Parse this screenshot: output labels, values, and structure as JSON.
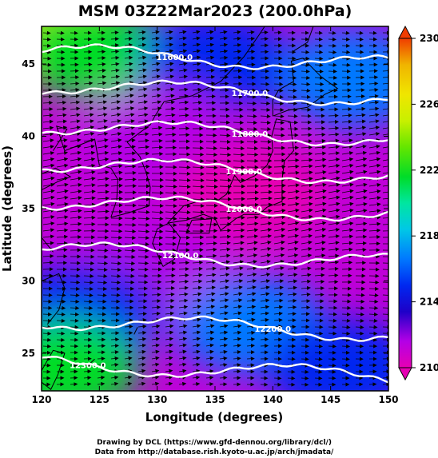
{
  "chart_data": {
    "type": "heatmap",
    "title": "MSM 03Z22Mar2023 (200.0hPa)",
    "xlabel": "Longitude (degrees)",
    "ylabel": "Latitude  (degrees)",
    "xlim": [
      120,
      150
    ],
    "ylim": [
      22.4,
      47.6
    ],
    "x_ticks": [
      "120",
      "125",
      "130",
      "135",
      "140",
      "145",
      "150"
    ],
    "y_ticks": [
      "25",
      "30",
      "35",
      "40",
      "45"
    ],
    "colorbar": {
      "min": 210,
      "max": 230,
      "ticks": [
        "210",
        "214",
        "218",
        "222",
        "226",
        "230"
      ],
      "colors": [
        "#e600b3",
        "#b400e6",
        "#1e00c8",
        "#0028f0",
        "#0078ff",
        "#00c8e6",
        "#00e6a0",
        "#00dc28",
        "#64e600",
        "#c8f000",
        "#f0e600",
        "#f0b400",
        "#f07800",
        "#f03c00"
      ]
    },
    "temperature_field": {
      "description": "shaded temperature (K)",
      "regions": [
        {
          "lon": 121,
          "lat": 47,
          "value": 226
        },
        {
          "lon": 124,
          "lat": 46,
          "value": 220
        },
        {
          "lon": 135,
          "lat": 45,
          "value": 214
        },
        {
          "lon": 147,
          "lat": 44,
          "value": 216
        },
        {
          "lon": 130,
          "lat": 40,
          "value": 211
        },
        {
          "lon": 138,
          "lat": 36,
          "value": 210
        },
        {
          "lon": 130,
          "lat": 31,
          "value": 211
        },
        {
          "lon": 124,
          "lat": 28,
          "value": 214
        },
        {
          "lon": 138,
          "lat": 27,
          "value": 216
        },
        {
          "lon": 122,
          "lat": 24,
          "value": 221
        },
        {
          "lon": 146,
          "lat": 24,
          "value": 215
        }
      ]
    },
    "contours": [
      {
        "value": "11600.0",
        "label_lon": 131.5,
        "label_lat": 45.5
      },
      {
        "value": "11700.0",
        "label_lon": 138.0,
        "label_lat": 43.0
      },
      {
        "value": "11800.0",
        "label_lon": 138.0,
        "label_lat": 40.2
      },
      {
        "value": "11900.0",
        "label_lon": 137.5,
        "label_lat": 37.6
      },
      {
        "value": "12000.0",
        "label_lon": 137.5,
        "label_lat": 35.0
      },
      {
        "value": "12100.0",
        "label_lon": 132.0,
        "label_lat": 31.8
      },
      {
        "value": "12200.0",
        "label_lon": 140.0,
        "label_lat": 26.7
      },
      {
        "value": "12300.0",
        "label_lon": 124.0,
        "label_lat": 24.2
      }
    ],
    "wind_vectors": "dense eastward arrows across the domain"
  },
  "credits": {
    "line1": "Drawing by DCL (https://www.gfd-dennou.org/library/dcl/)",
    "line2": "Data from http://database.rish.kyoto-u.ac.jp/arch/jmadata/"
  }
}
